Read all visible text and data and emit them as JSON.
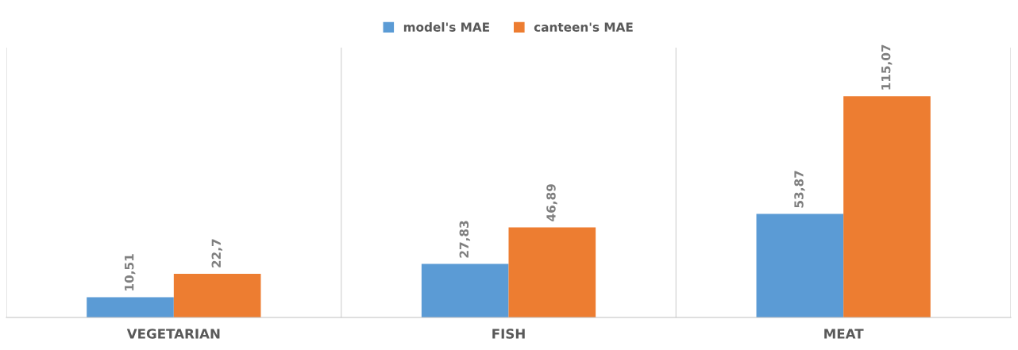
{
  "chart_data": {
    "type": "bar",
    "categories": [
      "VEGETARIAN",
      "FISH",
      "MEAT"
    ],
    "series": [
      {
        "name": "model's MAE",
        "color": "#5b9bd5",
        "values": [
          10.51,
          27.83,
          53.87
        ],
        "value_labels": [
          "10,51",
          "27,83",
          "53,87"
        ]
      },
      {
        "name": "canteen's MAE",
        "color": "#ed7d31",
        "values": [
          22.7,
          46.89,
          115.07
        ],
        "value_labels": [
          "22,7",
          "46,89",
          "115,07"
        ]
      }
    ],
    "grid": "x",
    "legend": "top"
  }
}
